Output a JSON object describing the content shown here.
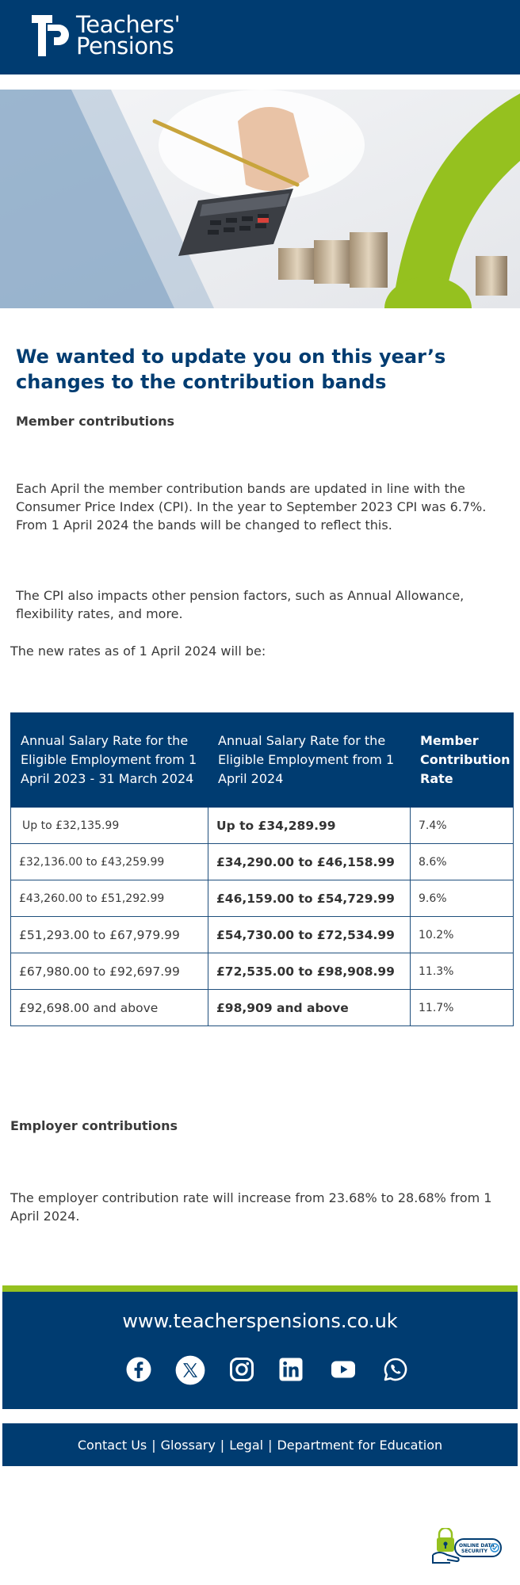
{
  "header": {
    "logo_line1": "Teachers'",
    "logo_line2": "Pensions"
  },
  "main": {
    "title": "We wanted to update you on this year’s changes to the contribution bands",
    "member_heading": "Member contributions",
    "para1": "Each April the member contribution bands are updated in line with the Consumer Price Index (CPI). In the year to September 2023 CPI was 6.7%. From 1 April 2024 the bands will be changed to reflect this.",
    "para2": "The CPI also impacts other pension factors, such as Annual Allowance, flexibility rates, and more.",
    "new_rates_intro": "The new rates as of 1 April 2024 will be:",
    "employer_heading": "Employer contributions",
    "employer_para": "The employer contribution rate will increase from 23.68% to 28.68% from 1 April 2024."
  },
  "table": {
    "headers": [
      "Annual Salary Rate for the Eligible Employment from  1 April 2023 - 31 March 2024",
      "Annual Salary Rate for the Eligible Employment from 1 April 2024",
      "Member Contribution Rate"
    ],
    "rows": [
      [
        "Up to £32,135.99",
        "Up to £34,289.99",
        "7.4%"
      ],
      [
        "£32,136.00 to £43,259.99",
        "£34,290.00 to £46,158.99",
        "8.6%"
      ],
      [
        "£43,260.00 to £51,292.99",
        "£46,159.00 to £54,729.99",
        "9.6%"
      ],
      [
        "£51,293.00 to £67,979.99",
        "£54,730.00 to £72,534.99",
        "10.2%"
      ],
      [
        "£67,980.00 to £92,697.99",
        "£72,535.00 to £98,908.99",
        "11.3%"
      ],
      [
        "£92,698.00 and above",
        "£98,909 and above",
        "11.7%"
      ]
    ]
  },
  "footer": {
    "site_url": "www.teacherspensions.co.uk",
    "social_icons": [
      "facebook-icon",
      "x-icon",
      "instagram-icon",
      "linkedin-icon",
      "youtube-icon",
      "whatsapp-icon"
    ],
    "links": [
      "Contact Us",
      "Glossary",
      "Legal",
      "Department for Education"
    ],
    "security_badge_line1": "ONLINE DATA",
    "security_badge_line2": "SECURITY"
  },
  "colors": {
    "brand_navy": "#003c71",
    "accent_green": "#95c11f"
  }
}
